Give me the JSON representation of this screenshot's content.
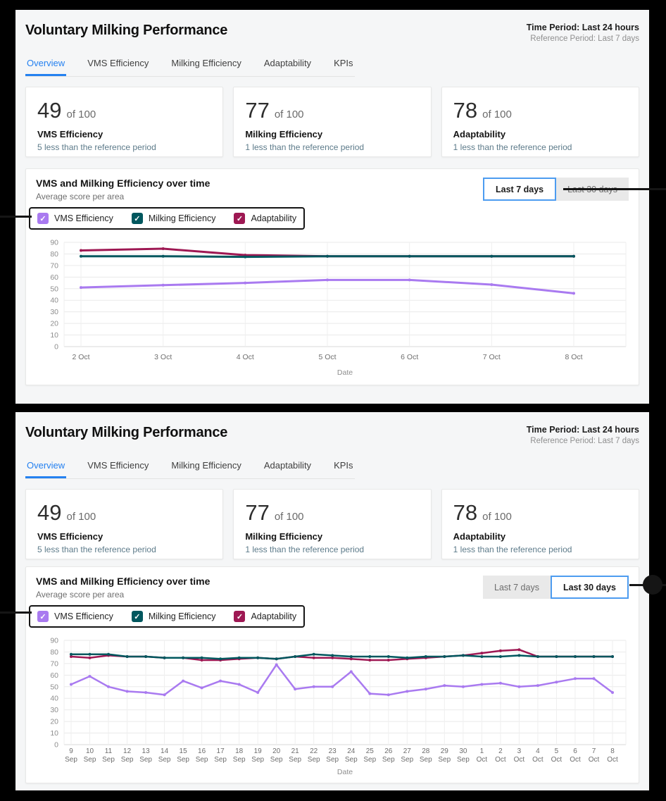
{
  "page": {
    "background": "#000000",
    "accent_blue": "#2581f0",
    "annotation_color": "#151515"
  },
  "panels": [
    {
      "title": "Voluntary Milking Performance",
      "meta": {
        "time_period": "Time Period: Last 24 hours",
        "reference_period": "Reference Period: Last 7 days"
      },
      "tabs": [
        {
          "label": "Overview",
          "active": true
        },
        {
          "label": "VMS Efficiency",
          "active": false
        },
        {
          "label": "Milking Efficiency",
          "active": false
        },
        {
          "label": "Adaptability",
          "active": false
        },
        {
          "label": "KPIs",
          "active": false
        }
      ],
      "cards": [
        {
          "score": "49",
          "of": "of 100",
          "name": "VMS Efficiency",
          "delta": "5 less than the reference period"
        },
        {
          "score": "77",
          "of": "of 100",
          "name": "Milking Efficiency",
          "delta": "1 less than the reference period"
        },
        {
          "score": "78",
          "of": "of 100",
          "name": "Adaptability",
          "delta": "1 less than the reference period"
        }
      ],
      "chart_section": {
        "title": "VMS and Milking Efficiency over time",
        "subtitle": "Average score per area",
        "range_buttons": [
          {
            "label": "Last 7 days",
            "selected": true
          },
          {
            "label": "Last 30 days",
            "selected": false
          }
        ],
        "legend": [
          {
            "label": "VMS Efficiency",
            "color": "#a97af0",
            "checked": true
          },
          {
            "label": "Milking Efficiency",
            "color": "#00575e",
            "checked": true
          },
          {
            "label": "Adaptability",
            "color": "#9e1853",
            "checked": true
          }
        ]
      }
    },
    {
      "title": "Voluntary Milking Performance",
      "meta": {
        "time_period": "Time Period: Last 24 hours",
        "reference_period": "Reference Period: Last 7 days"
      },
      "tabs": [
        {
          "label": "Overview",
          "active": true
        },
        {
          "label": "VMS Efficiency",
          "active": false
        },
        {
          "label": "Milking Efficiency",
          "active": false
        },
        {
          "label": "Adaptability",
          "active": false
        },
        {
          "label": "KPIs",
          "active": false
        }
      ],
      "cards": [
        {
          "score": "49",
          "of": "of 100",
          "name": "VMS Efficiency",
          "delta": "5 less than the reference period"
        },
        {
          "score": "77",
          "of": "of 100",
          "name": "Milking Efficiency",
          "delta": "1 less than the reference period"
        },
        {
          "score": "78",
          "of": "of 100",
          "name": "Adaptability",
          "delta": "1 less than the reference period"
        }
      ],
      "chart_section": {
        "title": "VMS and Milking Efficiency over time",
        "subtitle": "Average score per area",
        "range_buttons": [
          {
            "label": "Last 7 days",
            "selected": false
          },
          {
            "label": "Last 30 days",
            "selected": true
          }
        ],
        "legend": [
          {
            "label": "VMS Efficiency",
            "color": "#a97af0",
            "checked": true
          },
          {
            "label": "Milking Efficiency",
            "color": "#00575e",
            "checked": true
          },
          {
            "label": "Adaptability",
            "color": "#9e1853",
            "checked": true
          }
        ]
      }
    }
  ],
  "chart_data": [
    {
      "type": "line",
      "title": "VMS and Milking Efficiency over time (Last 7 days)",
      "xlabel": "Date",
      "ylabel": "Average score per area",
      "ylim": [
        0,
        90
      ],
      "grid": true,
      "legend_position": "top-left",
      "categories": [
        "2 Oct",
        "3 Oct",
        "4 Oct",
        "5 Oct",
        "6 Oct",
        "7 Oct",
        "8 Oct"
      ],
      "series": [
        {
          "name": "VMS Efficiency",
          "color": "#a97af0",
          "values": [
            51,
            53,
            55,
            57.5,
            57.5,
            53.5,
            46
          ]
        },
        {
          "name": "Adaptability",
          "color": "#9e1853",
          "values": [
            83,
            84.5,
            79,
            78,
            78,
            78,
            78
          ]
        },
        {
          "name": "Milking Efficiency",
          "color": "#00575e",
          "values": [
            78,
            78,
            77.5,
            78,
            78,
            78,
            78
          ]
        }
      ]
    },
    {
      "type": "line",
      "title": "VMS and Milking Efficiency over time (Last 30 days)",
      "xlabel": "Date",
      "ylabel": "Average score per area",
      "ylim": [
        0,
        90
      ],
      "grid": true,
      "legend_position": "top-left",
      "categories": [
        "9 Sep",
        "10 Sep",
        "11 Sep",
        "12 Sep",
        "13 Sep",
        "14 Sep",
        "15 Sep",
        "16 Sep",
        "17 Sep",
        "18 Sep",
        "19 Sep",
        "20 Sep",
        "21 Sep",
        "22 Sep",
        "23 Sep",
        "24 Sep",
        "25 Sep",
        "26 Sep",
        "27 Sep",
        "28 Sep",
        "29 Sep",
        "30 Sep",
        "1 Oct",
        "2 Oct",
        "3 Oct",
        "4 Oct",
        "5 Oct",
        "6 Oct",
        "7 Oct",
        "8 Oct"
      ],
      "series": [
        {
          "name": "VMS Efficiency",
          "color": "#a97af0",
          "values": [
            52,
            59,
            50,
            46,
            45,
            43,
            55,
            49,
            55,
            52,
            45,
            69,
            48,
            50,
            50,
            63,
            44,
            43,
            46,
            48,
            51,
            50,
            52,
            53,
            50,
            51,
            54,
            57,
            57,
            45
          ]
        },
        {
          "name": "Adaptability",
          "color": "#9e1853",
          "values": [
            76,
            75,
            77,
            76,
            76,
            75,
            75,
            73,
            73,
            74,
            75,
            74,
            76,
            75,
            75,
            74,
            73,
            73,
            74,
            75,
            76,
            77,
            79,
            81,
            82,
            76,
            76,
            76,
            76,
            76
          ]
        },
        {
          "name": "Milking Efficiency",
          "color": "#00575e",
          "values": [
            78,
            78,
            78,
            76,
            76,
            75,
            75,
            75,
            74,
            75,
            75,
            74,
            76,
            78,
            77,
            76,
            76,
            76,
            75,
            76,
            76,
            77,
            76,
            76,
            77,
            76,
            76,
            76,
            76,
            76
          ]
        }
      ]
    }
  ]
}
